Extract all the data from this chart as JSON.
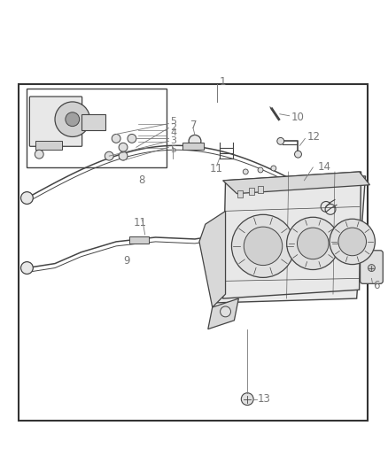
{
  "bg_color": "#ffffff",
  "border_color": "#333333",
  "line_color": "#444444",
  "label_color": "#777777",
  "fig_width": 4.38,
  "fig_height": 5.33,
  "dpi": 100
}
